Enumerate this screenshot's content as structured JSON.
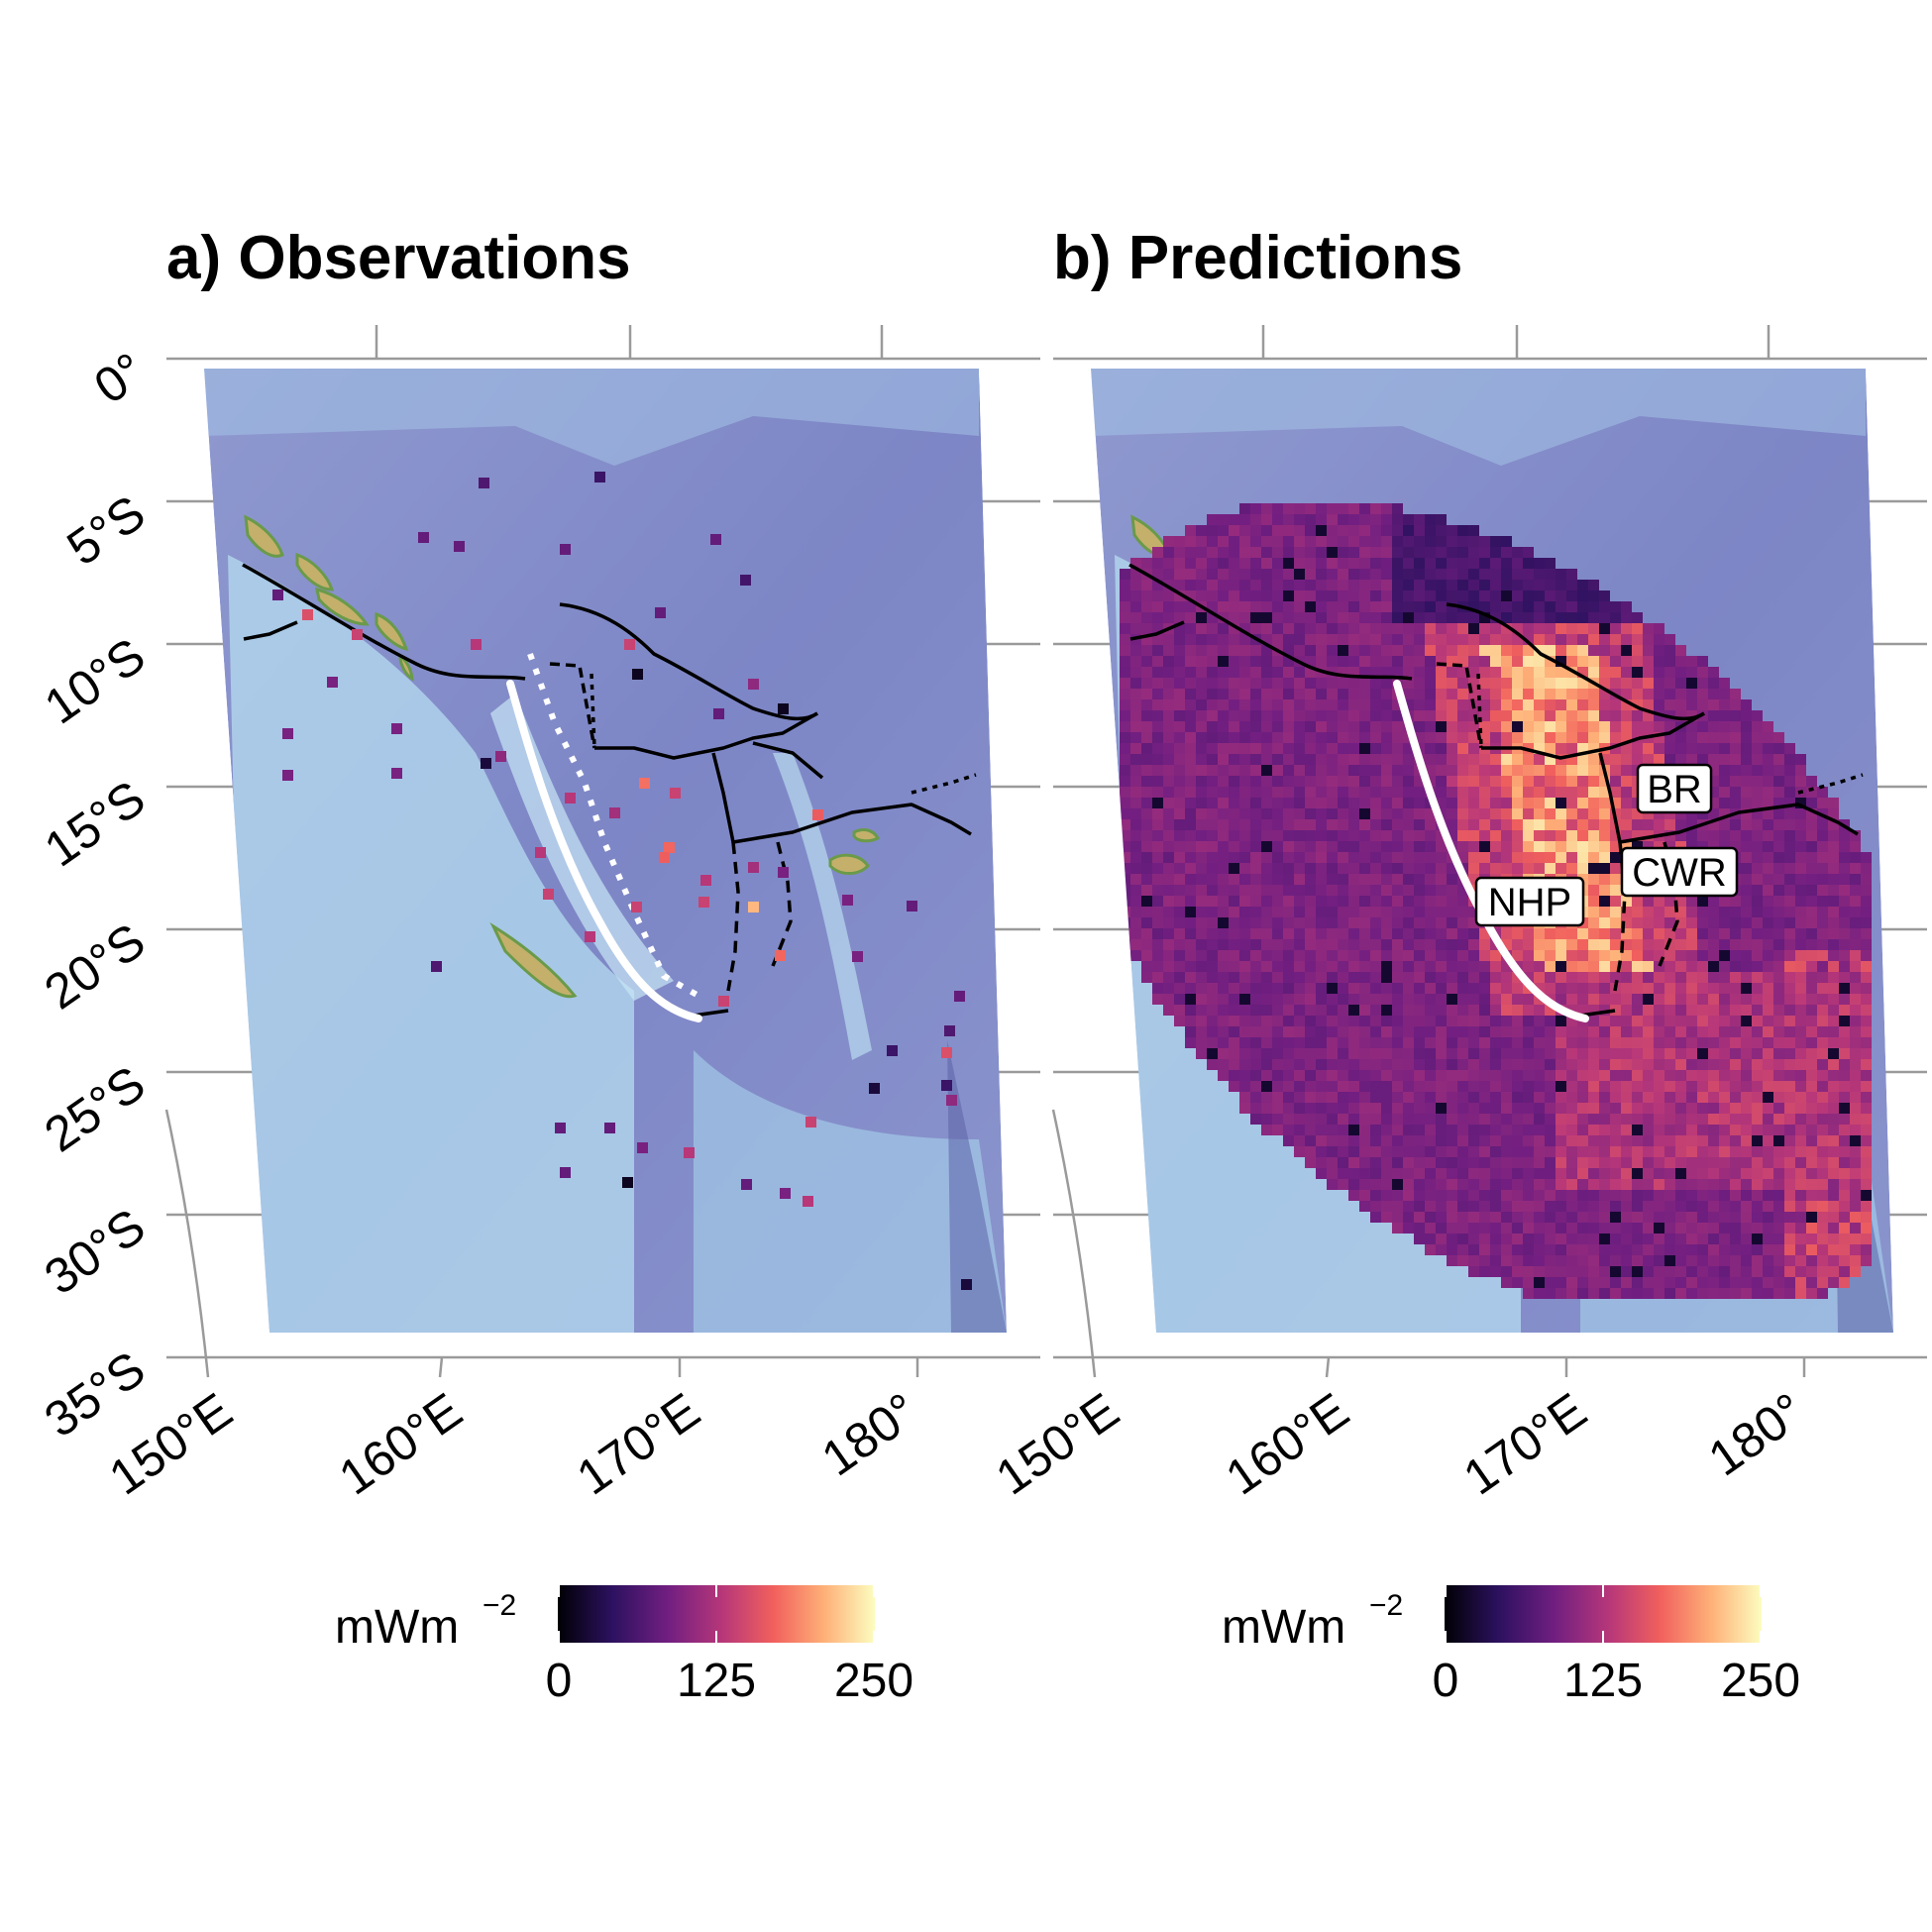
{
  "panels": [
    {
      "id": "observations",
      "title": "a) Observations",
      "lat_ticks": [
        "0°",
        "5°S",
        "10°S",
        "15°S",
        "20°S",
        "25°S",
        "30°S",
        "35°S"
      ],
      "lon_ticks": [
        "150°E",
        "160°E",
        "170°E",
        "180°"
      ],
      "colorbar": {
        "unit": "mWm",
        "unit_exp": "−2",
        "ticks": [
          "0",
          "125",
          "250"
        ],
        "range": [
          0,
          250
        ]
      },
      "features": [
        "seafloor-relief-basemap",
        "plate-boundaries",
        "subduction-segment-white",
        "point-observations"
      ]
    },
    {
      "id": "predictions",
      "title": "b) Predictions",
      "lat_ticks": [
        "0°",
        "5°S",
        "10°S",
        "15°S",
        "20°S",
        "25°S",
        "30°S",
        "35°S"
      ],
      "lon_ticks": [
        "150°E",
        "160°E",
        "170°E",
        "180°"
      ],
      "colorbar": {
        "unit": "mWm",
        "unit_exp": "−2",
        "ticks": [
          "0",
          "125",
          "250"
        ],
        "range": [
          0,
          250
        ]
      },
      "region_labels": [
        "BR",
        "CWR",
        "NHP"
      ],
      "features": [
        "seafloor-relief-basemap",
        "plate-boundaries",
        "subduction-segment-white",
        "gridded-predictions"
      ]
    }
  ],
  "colormap": {
    "name": "magma",
    "stops": [
      "#000004",
      "#2c115f",
      "#721f81",
      "#b73779",
      "#f1605d",
      "#feb078",
      "#fcfdbf"
    ]
  },
  "colors": {
    "ocean_deep": "#7b83c4",
    "ocean_shallow": "#a9d6ee",
    "land": "#c7b36f",
    "grid": "#9a9a9a"
  }
}
